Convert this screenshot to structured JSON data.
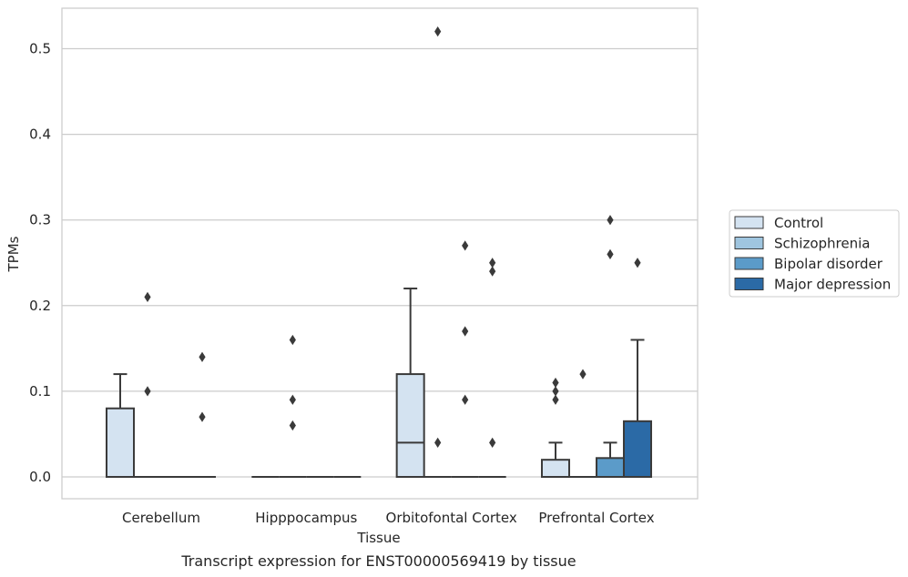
{
  "chart_data": {
    "type": "box",
    "caption": "Transcript expression for ENST00000569419 by tissue",
    "xlabel": "Tissue",
    "ylabel": "TPMs",
    "ylim": [
      -0.025,
      0.545
    ],
    "yticks": [
      0.0,
      0.1,
      0.2,
      0.3,
      0.4,
      0.5
    ],
    "ytick_labels": [
      "0.0",
      "0.1",
      "0.2",
      "0.3",
      "0.4",
      "0.5"
    ],
    "grid": "horizontal",
    "legend_position": "right",
    "categories": [
      "Cerebellum",
      "Hipppocampus",
      "Orbitofontal Cortex",
      "Prefrontal Cortex"
    ],
    "series": [
      {
        "name": "Control",
        "color": "#d4e3f1",
        "boxes": [
          {
            "category": "Cerebellum",
            "q1": 0.0,
            "median": 0.0,
            "q3": 0.08,
            "whisker_low": 0.0,
            "whisker_high": 0.12,
            "outliers": []
          },
          {
            "category": "Hipppocampus",
            "q1": 0.0,
            "median": 0.0,
            "q3": 0.0,
            "whisker_low": 0.0,
            "whisker_high": 0.0,
            "outliers": []
          },
          {
            "category": "Orbitofontal Cortex",
            "q1": 0.0,
            "median": 0.04,
            "q3": 0.12,
            "whisker_low": 0.0,
            "whisker_high": 0.22,
            "outliers": []
          },
          {
            "category": "Prefrontal Cortex",
            "q1": 0.0,
            "median": 0.0,
            "q3": 0.02,
            "whisker_low": 0.0,
            "whisker_high": 0.04,
            "outliers": [
              0.09,
              0.1,
              0.11
            ]
          }
        ]
      },
      {
        "name": "Schizophrenia",
        "color": "#9fc5df",
        "boxes": [
          {
            "category": "Cerebellum",
            "q1": 0.0,
            "median": 0.0,
            "q3": 0.0,
            "whisker_low": 0.0,
            "whisker_high": 0.0,
            "outliers": [
              0.1,
              0.21
            ]
          },
          {
            "category": "Hipppocampus",
            "q1": 0.0,
            "median": 0.0,
            "q3": 0.0,
            "whisker_low": 0.0,
            "whisker_high": 0.0,
            "outliers": [
              0.06,
              0.09,
              0.16
            ]
          },
          {
            "category": "Orbitofontal Cortex",
            "q1": 0.0,
            "median": 0.0,
            "q3": 0.0,
            "whisker_low": 0.0,
            "whisker_high": 0.0,
            "outliers": [
              0.04,
              0.52
            ]
          },
          {
            "category": "Prefrontal Cortex",
            "q1": 0.0,
            "median": 0.0,
            "q3": 0.0,
            "whisker_low": 0.0,
            "whisker_high": 0.0,
            "outliers": [
              0.12
            ]
          }
        ]
      },
      {
        "name": "Bipolar disorder",
        "color": "#5b9bc9",
        "boxes": [
          {
            "category": "Cerebellum",
            "q1": 0.0,
            "median": 0.0,
            "q3": 0.0,
            "whisker_low": 0.0,
            "whisker_high": 0.0,
            "outliers": []
          },
          {
            "category": "Hipppocampus",
            "q1": 0.0,
            "median": 0.0,
            "q3": 0.0,
            "whisker_low": 0.0,
            "whisker_high": 0.0,
            "outliers": []
          },
          {
            "category": "Orbitofontal Cortex",
            "q1": 0.0,
            "median": 0.0,
            "q3": 0.0,
            "whisker_low": 0.0,
            "whisker_high": 0.0,
            "outliers": [
              0.09,
              0.17,
              0.27
            ]
          },
          {
            "category": "Prefrontal Cortex",
            "q1": 0.0,
            "median": 0.0,
            "q3": 0.022,
            "whisker_low": 0.0,
            "whisker_high": 0.04,
            "outliers": [
              0.26,
              0.3
            ]
          }
        ]
      },
      {
        "name": "Major depression",
        "color": "#2b6aa6",
        "boxes": [
          {
            "category": "Cerebellum",
            "q1": 0.0,
            "median": 0.0,
            "q3": 0.0,
            "whisker_low": 0.0,
            "whisker_high": 0.0,
            "outliers": [
              0.07,
              0.14
            ]
          },
          {
            "category": "Hipppocampus",
            "q1": 0.0,
            "median": 0.0,
            "q3": 0.0,
            "whisker_low": 0.0,
            "whisker_high": 0.0,
            "outliers": []
          },
          {
            "category": "Orbitofontal Cortex",
            "q1": 0.0,
            "median": 0.0,
            "q3": 0.0,
            "whisker_low": 0.0,
            "whisker_high": 0.0,
            "outliers": [
              0.04,
              0.24,
              0.25
            ]
          },
          {
            "category": "Prefrontal Cortex",
            "q1": 0.0,
            "median": 0.0,
            "q3": 0.065,
            "whisker_low": 0.0,
            "whisker_high": 0.16,
            "outliers": [
              0.25
            ]
          }
        ]
      }
    ]
  }
}
